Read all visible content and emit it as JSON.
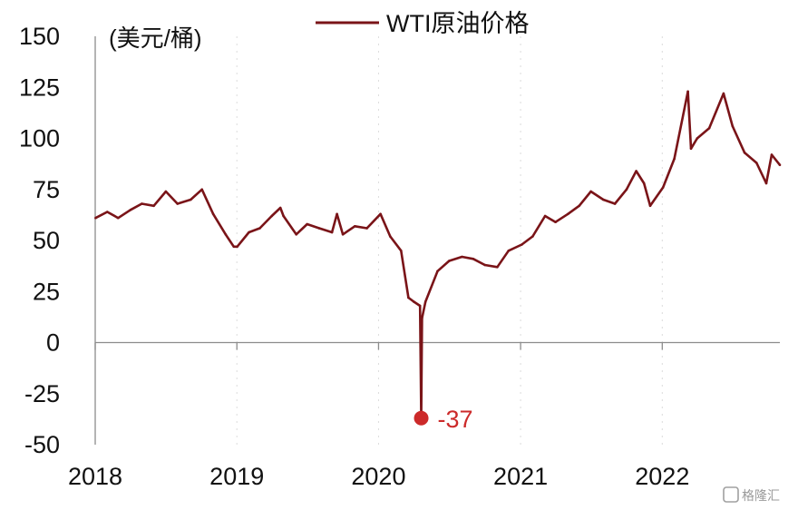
{
  "colors": {
    "series": "#7a1418",
    "annotation": "#cc2a2a",
    "axis": "#8c8c8c",
    "grid": "#dcdcdc"
  },
  "chart_data": {
    "type": "line",
    "unit_label": "(美元/桶)",
    "yticks": [
      150,
      125,
      100,
      75,
      50,
      25,
      0,
      -25,
      -50
    ],
    "ylim": [
      -50,
      150
    ],
    "xticks": [
      "2018",
      "2019",
      "2020",
      "2021",
      "2022"
    ],
    "xlim": [
      "2018-01-01",
      "2022-10-31"
    ],
    "grid": "dotted-vertical",
    "legend": {
      "position": "top",
      "entries": [
        "WTI原油价格"
      ]
    },
    "series": [
      {
        "name": "WTI原油价格",
        "x": [
          "2018-01-02",
          "2018-02-01",
          "2018-03-01",
          "2018-04-02",
          "2018-05-01",
          "2018-06-01",
          "2018-07-02",
          "2018-08-01",
          "2018-09-04",
          "2018-10-03",
          "2018-11-01",
          "2018-12-03",
          "2018-12-24",
          "2019-01-02",
          "2019-02-01",
          "2019-03-01",
          "2019-04-01",
          "2019-04-23",
          "2019-05-01",
          "2019-06-03",
          "2019-07-01",
          "2019-08-01",
          "2019-09-03",
          "2019-09-16",
          "2019-10-01",
          "2019-11-01",
          "2019-12-02",
          "2020-01-06",
          "2020-01-31",
          "2020-02-28",
          "2020-03-18",
          "2020-04-01",
          "2020-04-17",
          "2020-04-20",
          "2020-04-22",
          "2020-05-01",
          "2020-06-01",
          "2020-07-01",
          "2020-08-03",
          "2020-09-01",
          "2020-10-01",
          "2020-11-02",
          "2020-12-01",
          "2021-01-04",
          "2021-02-01",
          "2021-03-05",
          "2021-04-01",
          "2021-05-03",
          "2021-06-01",
          "2021-07-01",
          "2021-08-02",
          "2021-09-01",
          "2021-10-01",
          "2021-10-26",
          "2021-11-15",
          "2021-12-01",
          "2022-01-03",
          "2022-02-01",
          "2022-03-08",
          "2022-03-16",
          "2022-04-01",
          "2022-05-02",
          "2022-06-08",
          "2022-07-01",
          "2022-08-01",
          "2022-09-01",
          "2022-09-26",
          "2022-10-10",
          "2022-10-31"
        ],
        "values": [
          61,
          64,
          61,
          65,
          68,
          67,
          74,
          68,
          70,
          75,
          63,
          53,
          47,
          47,
          54,
          56,
          62,
          66,
          62,
          53,
          58,
          56,
          54,
          63,
          53,
          57,
          56,
          63,
          52,
          45,
          22,
          20,
          18,
          -37,
          12,
          20,
          35,
          40,
          42,
          41,
          38,
          37,
          45,
          48,
          52,
          62,
          59,
          63,
          67,
          74,
          70,
          68,
          75,
          84,
          78,
          67,
          76,
          90,
          123,
          95,
          100,
          105,
          122,
          106,
          93,
          88,
          78,
          92,
          87
        ]
      }
    ],
    "annotations": [
      {
        "x": "2020-04-20",
        "value": -37,
        "label": "-37"
      }
    ]
  },
  "watermark": "格隆汇"
}
